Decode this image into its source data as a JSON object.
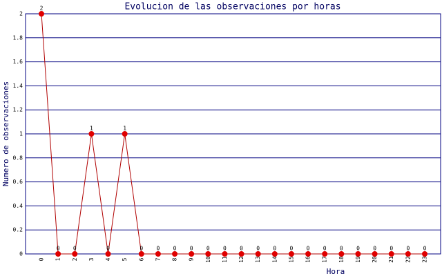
{
  "chart_data": {
    "type": "line",
    "title": "Evolucion de las observaciones por horas",
    "x_label": "Hora",
    "y_label": "Numero de observaciones",
    "categories": [
      "0",
      "1",
      "2",
      "3",
      "4",
      "5",
      "6",
      "7",
      "8",
      "9",
      "10",
      "11",
      "12",
      "13",
      "14",
      "15",
      "16",
      "17",
      "18",
      "19",
      "20",
      "21",
      "22",
      "23"
    ],
    "values": [
      2,
      0,
      0,
      1,
      0,
      1,
      0,
      0,
      0,
      0,
      0,
      0,
      0,
      0,
      0,
      0,
      0,
      0,
      0,
      0,
      0,
      0,
      0,
      0
    ],
    "color": "#b00000",
    "marker_color": "#e00000",
    "ylim": [
      0,
      2
    ],
    "yticks": [
      0,
      0.2,
      0.4,
      0.6,
      0.8,
      1,
      1.2,
      1.4,
      1.6,
      1.8,
      2
    ],
    "grid": true
  }
}
